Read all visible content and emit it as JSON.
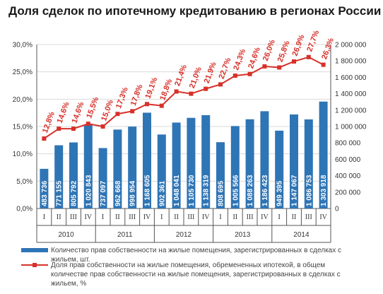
{
  "title": "Доля сделок по ипотечному кредитованию в регионах России",
  "colors": {
    "bar": "#2e75b6",
    "line": "#d6312a",
    "axis": "#555555",
    "grid": "#d9d9d9"
  },
  "chart_data": {
    "type": "bar+line",
    "quarters": [
      "I",
      "II",
      "III",
      "IV",
      "I",
      "II",
      "III",
      "IV",
      "I",
      "II",
      "III",
      "IV",
      "I",
      "II",
      "III",
      "IV",
      "I",
      "II",
      "III",
      "IV"
    ],
    "years": [
      "2010",
      "2011",
      "2012",
      "2013",
      "2014"
    ],
    "series": [
      {
        "name": "Количество прав собственности на жилые помещения, зарегистрированных в сделках с жильем, шт.",
        "type": "bar",
        "axis": "right",
        "values": [
          483736,
          771155,
          805792,
          1020843,
          737097,
          962668,
          998954,
          1168605,
          902361,
          1048041,
          1105730,
          1138319,
          808695,
          1005566,
          1088263,
          1186423,
          949395,
          1147067,
          1086753,
          1303918
        ],
        "labels": [
          "483 736",
          "771 155",
          "805 792",
          "1 020 843",
          "737 097",
          "962 668",
          "998 954",
          "1 168 605",
          "902 361",
          "1 048 041",
          "1 105 730",
          "1 138 319",
          "808 695",
          "1 005 566",
          "1 088 263",
          "1 186 423",
          "949 395",
          "1 147 067",
          "1 086 753",
          "1 303 918"
        ]
      },
      {
        "name": "Доля прав собственности на жилые помещения, обремененных ипотекой, в общем количестве прав собственности на жилые помещения, зарегистрированных в сделках с жильем, %",
        "type": "line",
        "axis": "left",
        "values": [
          12.8,
          14.6,
          14.6,
          15.5,
          15.0,
          17.3,
          17.8,
          19.1,
          18.8,
          21.4,
          21.0,
          21.9,
          22.7,
          24.3,
          24.6,
          26.0,
          25.8,
          26.9,
          27.7,
          26.3
        ],
        "labels": [
          "12,8%",
          "14,6%",
          "14,6%",
          "15,5%",
          "15,0%",
          "17,3%",
          "17,8%",
          "19,1%",
          "18,8%",
          "21,4%",
          "21,0%",
          "21,9%",
          "22,7%",
          "24,3%",
          "24,6%",
          "26,0%",
          "25,8%",
          "26,9%",
          "27,7%",
          "26,3%"
        ]
      }
    ],
    "left_axis": {
      "range": [
        0,
        30
      ],
      "ticks": [
        "0,0%",
        "5,0%",
        "10,0%",
        "15,0%",
        "20,0%",
        "25,0%",
        "30,0%"
      ]
    },
    "right_axis": {
      "range": [
        0,
        2000000
      ],
      "ticks": [
        "0",
        "200 000",
        "400 000",
        "600 000",
        "800 000",
        "1 000 000",
        "1 200 000",
        "1 400 000",
        "1 600 000",
        "1 800 000",
        "2 000 000"
      ]
    },
    "grid": true,
    "legend_position": "bottom"
  }
}
